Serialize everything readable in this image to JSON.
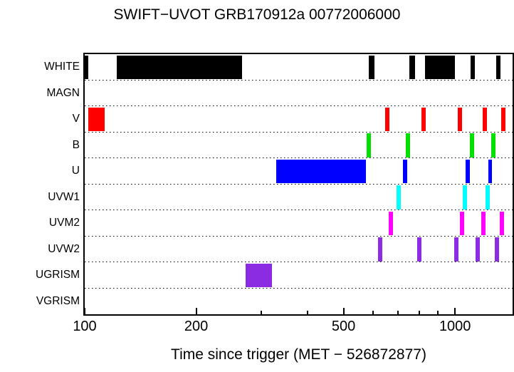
{
  "chart_data": {
    "type": "timeline",
    "title": "SWIFT−UVOT GRB170912a 00772006000",
    "xlabel": "Time since trigger (MET − 526872877)",
    "ylabel": "",
    "x_scale": "log",
    "xlim": [
      100,
      1430
    ],
    "x_major_ticks": [
      100,
      200,
      500,
      1000
    ],
    "x_minor_ticks": [
      300,
      400,
      600,
      700,
      800,
      900
    ],
    "grid": "dotted-row-separators",
    "legend": "none",
    "rows": [
      {
        "label": "WHITE",
        "color": "#000000",
        "intervals": [
          [
            100,
            102
          ],
          [
            122,
            266
          ],
          [
            585,
            606
          ],
          [
            753,
            781
          ],
          [
            830,
            1000
          ],
          [
            1102,
            1132
          ],
          [
            1293,
            1328
          ]
        ]
      },
      {
        "label": "MAGN",
        "color": "#000000",
        "intervals": []
      },
      {
        "label": "V",
        "color": "#ff0000",
        "intervals": [
          [
            102,
            113
          ],
          [
            648,
            665
          ],
          [
            812,
            834
          ],
          [
            1018,
            1045
          ],
          [
            1189,
            1221
          ],
          [
            1334,
            1369
          ]
        ]
      },
      {
        "label": "B",
        "color": "#00e000",
        "intervals": [
          [
            576,
            593
          ],
          [
            737,
            756
          ],
          [
            1098,
            1127
          ],
          [
            1253,
            1287
          ]
        ]
      },
      {
        "label": "U",
        "color": "#0000ff",
        "intervals": [
          [
            329,
            575
          ],
          [
            724,
            743
          ],
          [
            1069,
            1098
          ],
          [
            1231,
            1259
          ]
        ]
      },
      {
        "label": "UVW1",
        "color": "#00ffff",
        "intervals": [
          [
            695,
            714
          ],
          [
            1050,
            1078
          ],
          [
            1210,
            1243
          ]
        ]
      },
      {
        "label": "UVM2",
        "color": "#ff00ff",
        "intervals": [
          [
            663,
            680
          ],
          [
            1032,
            1059
          ],
          [
            1178,
            1210
          ],
          [
            1322,
            1358
          ]
        ]
      },
      {
        "label": "UVW2",
        "color": "#8b2be2",
        "intervals": [
          [
            620,
            636
          ],
          [
            791,
            812
          ],
          [
            996,
            1022
          ],
          [
            1137,
            1168
          ],
          [
            1281,
            1316
          ]
        ]
      },
      {
        "label": "UGRISM",
        "color": "#8b2be2",
        "intervals": [
          [
            272,
            320
          ]
        ]
      },
      {
        "label": "VGRISM",
        "color": "#000000",
        "intervals": []
      }
    ]
  }
}
